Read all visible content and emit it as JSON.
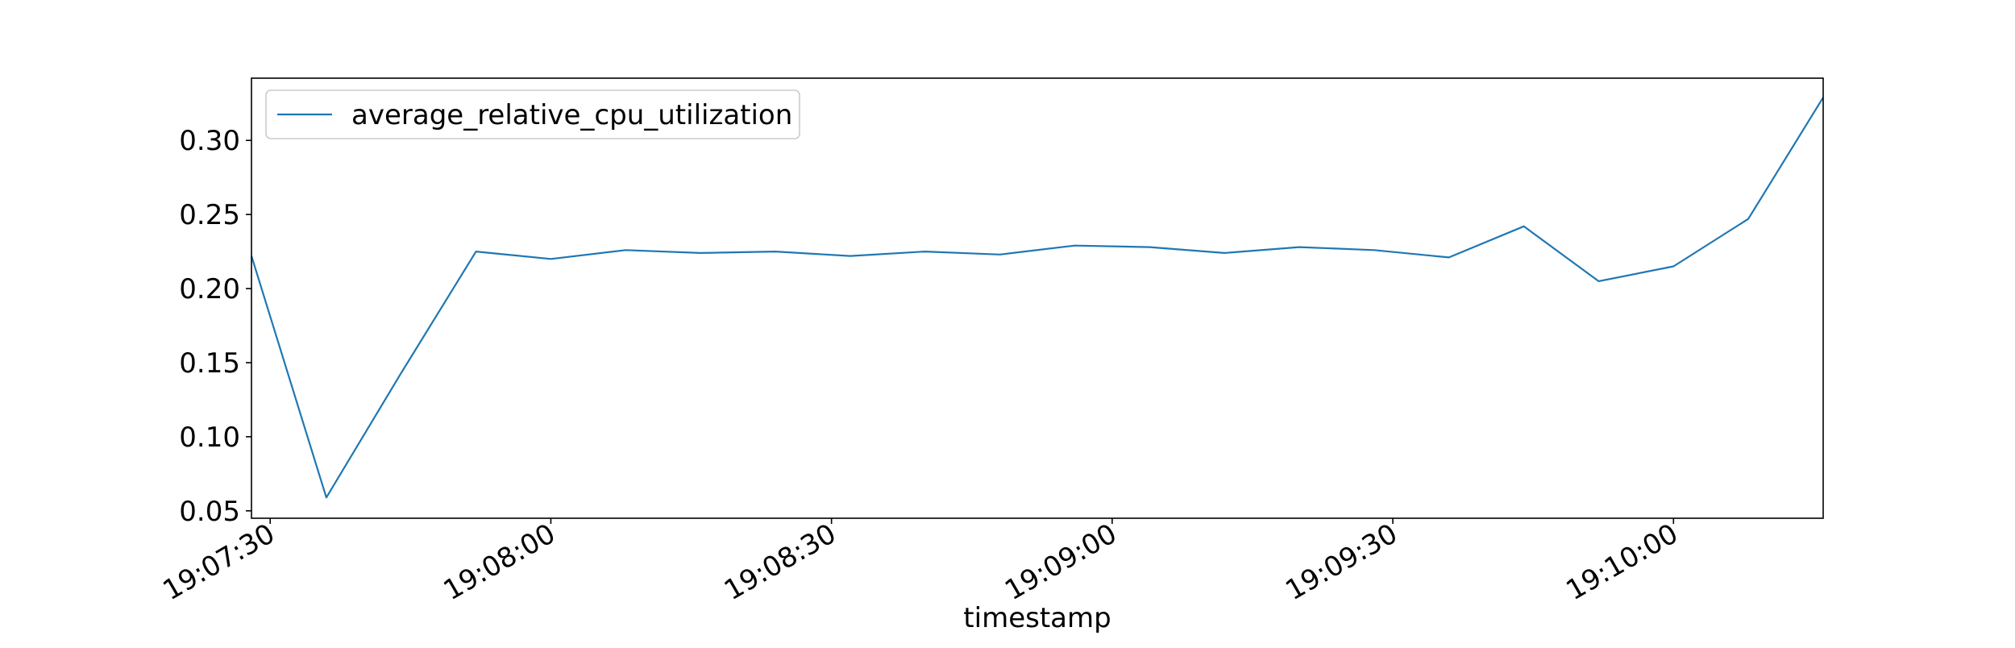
{
  "chart_data": {
    "type": "line",
    "title": "",
    "xlabel": "timestamp",
    "ylabel": "",
    "x_type": "time",
    "xlim": [
      "19:07:28",
      "19:10:16"
    ],
    "ylim": [
      0.045,
      0.342
    ],
    "x_ticks": [
      "19:07:30",
      "19:08:00",
      "19:08:30",
      "19:09:00",
      "19:09:30",
      "19:10:00"
    ],
    "y_ticks": [
      0.05,
      0.1,
      0.15,
      0.2,
      0.25,
      0.3
    ],
    "y_tick_labels": [
      "0.05",
      "0.10",
      "0.15",
      "0.20",
      "0.25",
      "0.30"
    ],
    "grid": false,
    "legend": {
      "placement": "top-left",
      "entries": [
        "average_relative_cpu_utilization"
      ]
    },
    "series": [
      {
        "name": "average_relative_cpu_utilization",
        "color": "#1f77b4",
        "x": [
          "19:07:28",
          "19:07:36",
          "19:07:44",
          "19:07:52",
          "19:08:00",
          "19:08:08",
          "19:08:16",
          "19:08:24",
          "19:08:32",
          "19:08:40",
          "19:08:48",
          "19:08:56",
          "19:09:04",
          "19:09:12",
          "19:09:20",
          "19:09:28",
          "19:09:36",
          "19:09:44",
          "19:09:52",
          "19:10:00",
          "19:10:08",
          "19:10:16"
        ],
        "values": [
          0.222,
          0.059,
          0.143,
          0.225,
          0.22,
          0.226,
          0.224,
          0.225,
          0.222,
          0.225,
          0.223,
          0.229,
          0.228,
          0.224,
          0.228,
          0.226,
          0.221,
          0.242,
          0.205,
          0.215,
          0.247,
          0.329
        ]
      }
    ]
  }
}
